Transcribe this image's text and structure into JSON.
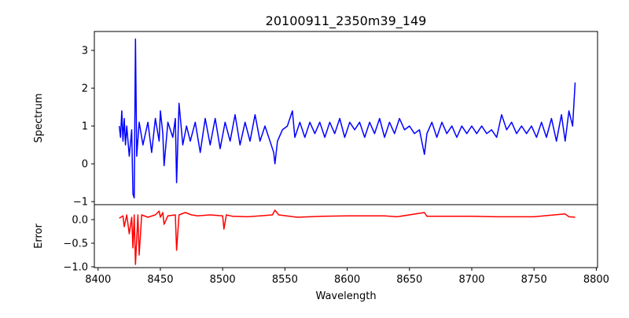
{
  "chart_data": [
    {
      "type": "line",
      "title": "20100911_2350m39_149",
      "xlabel": "",
      "ylabel": "Spectrum",
      "xlim": [
        8397,
        8801
      ],
      "ylim": [
        -1.08,
        3.5
      ],
      "yticks": [
        -1,
        0,
        1,
        2,
        3
      ],
      "color": "#0000ff",
      "series": [
        {
          "name": "Spectrum",
          "x": [
            8417,
            8418,
            8419,
            8420,
            8421,
            8422,
            8423,
            8425,
            8427,
            8428,
            8429,
            8430,
            8431,
            8433,
            8436,
            8440,
            8443,
            8446,
            8449,
            8450,
            8452,
            8453,
            8456,
            8460,
            8462,
            8463,
            8465,
            8468,
            8471,
            8474,
            8478,
            8482,
            8486,
            8490,
            8494,
            8498,
            8502,
            8506,
            8510,
            8514,
            8518,
            8522,
            8526,
            8530,
            8534,
            8538,
            8541,
            8542,
            8544,
            8548,
            8552,
            8556,
            8558,
            8562,
            8566,
            8570,
            8574,
            8578,
            8582,
            8586,
            8590,
            8594,
            8598,
            8602,
            8606,
            8610,
            8614,
            8618,
            8622,
            8626,
            8630,
            8634,
            8638,
            8642,
            8646,
            8650,
            8654,
            8658,
            8662,
            8664,
            8668,
            8672,
            8676,
            8680,
            8684,
            8688,
            8692,
            8696,
            8700,
            8704,
            8708,
            8712,
            8716,
            8720,
            8724,
            8728,
            8732,
            8736,
            8740,
            8744,
            8748,
            8752,
            8756,
            8760,
            8764,
            8768,
            8772,
            8775,
            8778,
            8781,
            8783
          ],
          "y": [
            1.0,
            0.7,
            1.4,
            0.6,
            1.2,
            0.5,
            1.0,
            0.2,
            0.9,
            -0.8,
            -0.9,
            3.3,
            0.2,
            1.1,
            0.5,
            1.1,
            0.3,
            1.2,
            0.6,
            1.4,
            0.8,
            -0.05,
            1.1,
            0.7,
            1.2,
            -0.5,
            1.6,
            0.5,
            1.0,
            0.6,
            1.1,
            0.3,
            1.2,
            0.5,
            1.2,
            0.4,
            1.1,
            0.6,
            1.3,
            0.5,
            1.1,
            0.6,
            1.3,
            0.6,
            1.0,
            0.6,
            0.3,
            0.0,
            0.6,
            0.9,
            1.0,
            1.4,
            0.7,
            1.1,
            0.7,
            1.1,
            0.8,
            1.1,
            0.7,
            1.1,
            0.8,
            1.2,
            0.7,
            1.1,
            0.9,
            1.1,
            0.7,
            1.1,
            0.8,
            1.2,
            0.7,
            1.1,
            0.8,
            1.2,
            0.9,
            1.0,
            0.8,
            0.9,
            0.25,
            0.8,
            1.1,
            0.7,
            1.1,
            0.8,
            1.0,
            0.7,
            1.0,
            0.8,
            1.0,
            0.8,
            1.0,
            0.8,
            0.9,
            0.7,
            1.3,
            0.9,
            1.1,
            0.8,
            1.0,
            0.8,
            1.0,
            0.7,
            1.1,
            0.7,
            1.2,
            0.6,
            1.3,
            0.6,
            1.4,
            1.0,
            2.15
          ]
        }
      ]
    },
    {
      "type": "line",
      "title": "",
      "xlabel": "Wavelength",
      "ylabel": "Error",
      "xlim": [
        8397,
        8801
      ],
      "ylim": [
        -1.017,
        0.317
      ],
      "xticks": [
        8400,
        8450,
        8500,
        8550,
        8600,
        8650,
        8700,
        8750,
        8800
      ],
      "yticks": [
        -1.0,
        -0.5,
        0.0
      ],
      "ytick_labels": [
        "−1.0",
        "−0.5",
        "0.0"
      ],
      "color": "#ff0000",
      "series": [
        {
          "name": "Error",
          "x": [
            8417,
            8420,
            8421,
            8423,
            8425,
            8427,
            8428,
            8429,
            8430,
            8432,
            8433,
            8435,
            8440,
            8446,
            8449,
            8450,
            8452,
            8453,
            8456,
            8462,
            8463,
            8465,
            8470,
            8475,
            8480,
            8490,
            8500,
            8501,
            8503,
            8508,
            8520,
            8530,
            8540,
            8542,
            8545,
            8560,
            8580,
            8600,
            8630,
            8640,
            8662,
            8664,
            8680,
            8700,
            8720,
            8750,
            8775,
            8778,
            8783
          ],
          "y": [
            0.03,
            0.08,
            -0.15,
            0.1,
            -0.3,
            0.05,
            -0.6,
            0.1,
            -0.95,
            0.1,
            -0.75,
            0.1,
            0.05,
            0.1,
            0.18,
            0.05,
            0.15,
            -0.1,
            0.08,
            0.1,
            -0.65,
            0.1,
            0.15,
            0.1,
            0.08,
            0.1,
            0.08,
            -0.2,
            0.1,
            0.07,
            0.06,
            0.08,
            0.1,
            0.2,
            0.1,
            0.05,
            0.07,
            0.08,
            0.08,
            0.06,
            0.15,
            0.07,
            0.07,
            0.07,
            0.06,
            0.06,
            0.12,
            0.06,
            0.05
          ]
        }
      ]
    }
  ]
}
